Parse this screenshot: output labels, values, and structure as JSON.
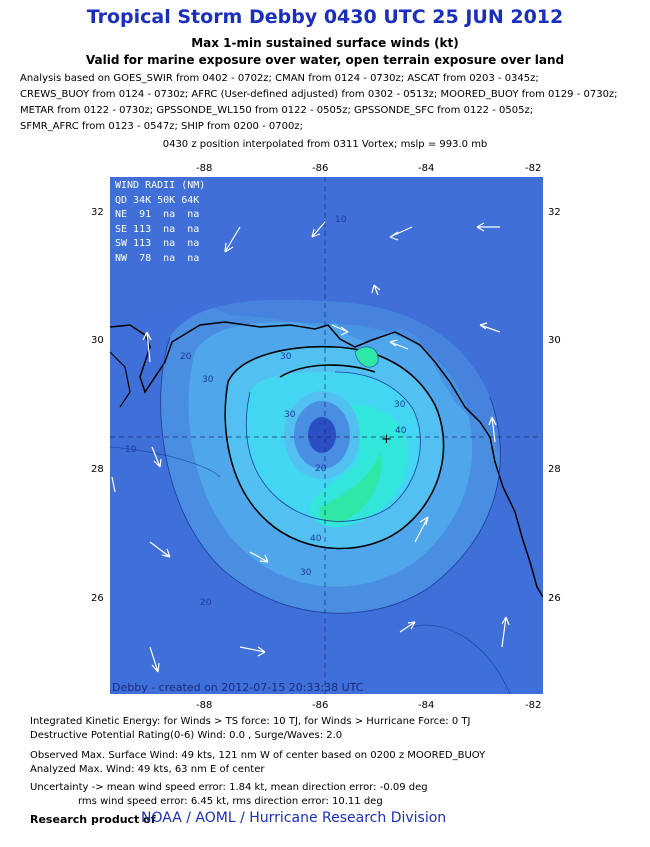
{
  "title": "Tropical Storm Debby 0430 UTC 25 JUN 2012",
  "subtitle1": "Max 1-min sustained surface winds (kt)",
  "subtitle2": "Valid for marine exposure over water, open terrain exposure over land",
  "analysis_lines": [
    "Analysis based on GOES_SWIR from 0402 - 0702z; CMAN from 0124 - 0730z; ASCAT from 0203 - 0345z;",
    "CREWS_BUOY from 0124 - 0730z; AFRC (User-defined adjusted) from 0302 - 0513z; MOORED_BUOY from 0129 - 0730z;",
    "METAR from 0122 - 0730z; GPSSONDE_WL150 from 0122 - 0505z; GPSSONDE_SFC from 0122 - 0505z;",
    "SFMR_AFRC from 0123 - 0547z; SHIP from 0200 - 0700z;"
  ],
  "position_note": "0430 z position interpolated from 0311 Vortex; mslp = 993.0 mb",
  "map": {
    "lon_ticks": [
      "-88",
      "-86",
      "-84",
      "-82"
    ],
    "lat_ticks": [
      "32",
      "30",
      "28",
      "26"
    ],
    "center_symbol": "+",
    "contour_labels": [
      "10",
      "20",
      "30",
      "40"
    ],
    "colors": {
      "background_blue": "#3f6fd8",
      "level_20": "#4a8ee2",
      "level_25": "#4fa6ea",
      "level_30": "#52c0f0",
      "level_35": "#43d6f2",
      "level_40": "#33e6dc",
      "level_45": "#2ee8a8",
      "coast": "#000000"
    }
  },
  "wind_radii": {
    "title": "WIND RADII (NM)",
    "header": "QD 34K 50K 64K",
    "rows": [
      "NE  91  na  na",
      "SE 113  na  na",
      "SW 113  na  na",
      "NW  78  na  na"
    ]
  },
  "credit": "Debby  -  created on 2012-07-15 20:33:38 UTC",
  "footer": {
    "ike": "Integrated Kinetic Energy: for Winds > TS force: 10 TJ, for Winds > Hurricane Force: 0 TJ",
    "dpr": "Destructive Potential Rating(0-6)  Wind: 0.0 , Surge/Waves: 2.0",
    "observed": "Observed Max. Surface Wind: 49 kts, 121 nm W of center based on 0200 z MOORED_BUOY",
    "analyzed": "Analyzed Max. Wind: 49 kts, 63 nm  E of center",
    "uncertainty": "Uncertainty -> mean wind speed error: 1.84 kt, mean direction error:  -0.09 deg",
    "rms": "rms wind speed error: 6.45 kt, rms direction error: 10.11 deg"
  },
  "research": {
    "prefix": "Research product of",
    "link": "NOAA  /  AOML  /  Hurricane Research Division"
  }
}
